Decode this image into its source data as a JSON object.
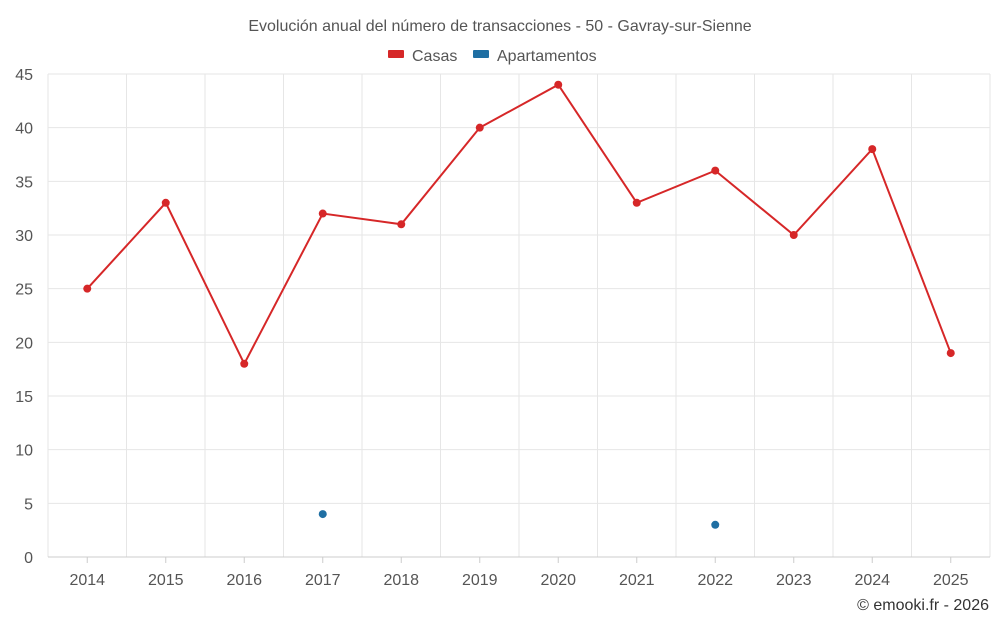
{
  "chart_data": {
    "type": "line",
    "title": "Evolución anual del número de transacciones - 50 - Gavray-sur-Sienne",
    "categories": [
      "2014",
      "2015",
      "2016",
      "2017",
      "2018",
      "2019",
      "2020",
      "2021",
      "2022",
      "2023",
      "2024",
      "2025"
    ],
    "series": [
      {
        "name": "Casas",
        "color": "#d62728",
        "values": [
          25,
          33,
          18,
          32,
          31,
          40,
          44,
          33,
          36,
          30,
          38,
          19
        ]
      },
      {
        "name": "Apartamentos",
        "color": "#1f6fa3",
        "values": [
          null,
          null,
          null,
          4,
          null,
          null,
          null,
          null,
          3,
          null,
          null,
          null
        ]
      }
    ],
    "ylim": [
      0,
      45
    ],
    "yticks": [
      0,
      5,
      10,
      15,
      20,
      25,
      30,
      35,
      40,
      45
    ],
    "xlabel": "",
    "ylabel": "",
    "grid": true,
    "legend": "top-center"
  },
  "credit": "© emooki.fr - 2026"
}
